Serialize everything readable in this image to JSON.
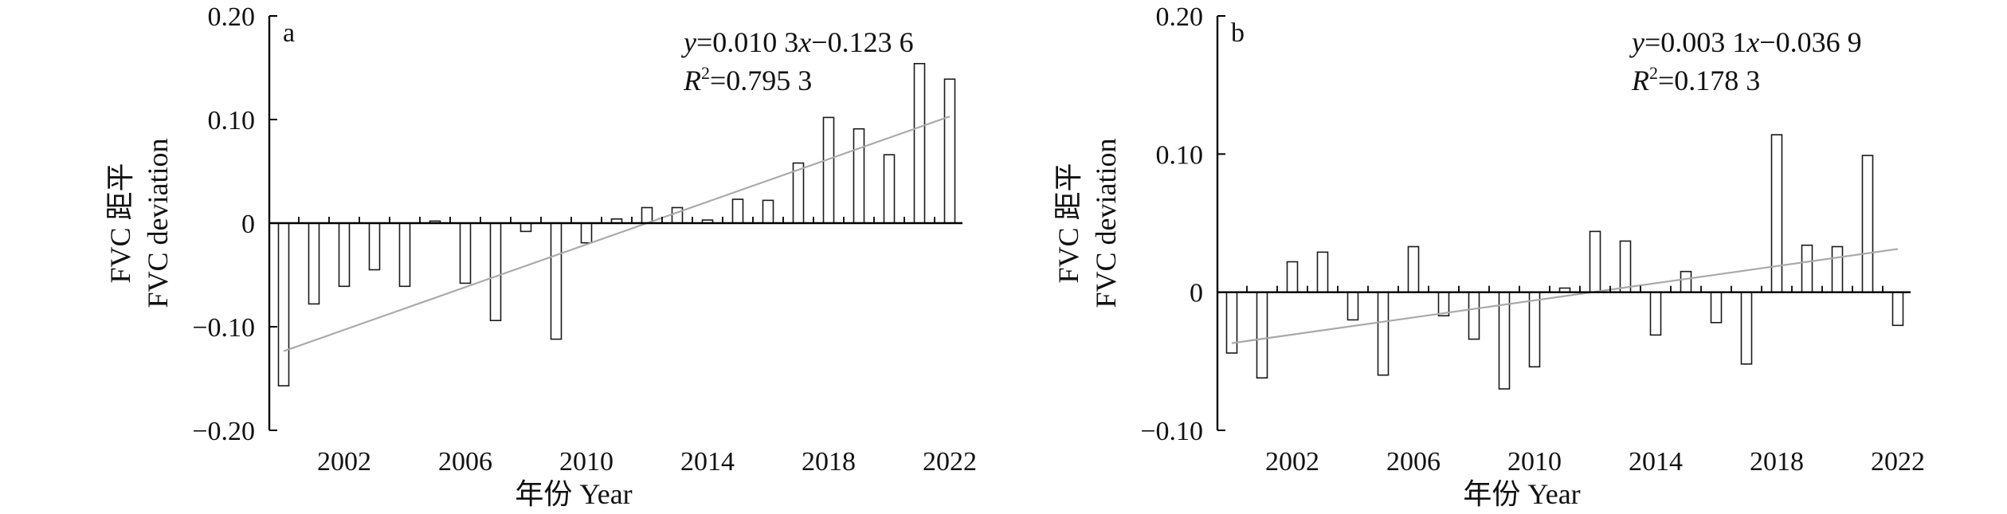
{
  "figure": {
    "colors": {
      "bar_fill": "#ffffff",
      "bar_stroke": "#1a1a1a",
      "axis": "#000000",
      "trend": "#a9a9a9"
    }
  },
  "chart_data": [
    {
      "type": "bar",
      "panel_label": "a",
      "ylabel_cn": "FVC 距平",
      "ylabel_en": "FVC deviation",
      "xlabel": "年份 Year",
      "equation": {
        "y_part": "y",
        "eq_part": "=0.010 3",
        "x_part": "x",
        "rest_part": "−0.123 6"
      },
      "r2": {
        "r_part": "R",
        "sup_part": "2",
        "val_part": "=0.795 3"
      },
      "ylim": [
        -0.2,
        0.2
      ],
      "yticks": [
        -0.2,
        -0.1,
        0,
        0.1,
        0.2
      ],
      "ytick_labels": [
        "−0.20",
        "−0.10",
        "0",
        "0.10",
        "0.20"
      ],
      "xticks": [
        2002,
        2006,
        2010,
        2014,
        2018,
        2022
      ],
      "xtick_labels": [
        "2002",
        "2006",
        "2010",
        "2014",
        "2018",
        "2022"
      ],
      "categories": [
        2000,
        2001,
        2002,
        2003,
        2004,
        2005,
        2006,
        2007,
        2008,
        2009,
        2010,
        2011,
        2012,
        2013,
        2014,
        2015,
        2016,
        2017,
        2018,
        2019,
        2020,
        2021,
        2022
      ],
      "values": [
        -0.157,
        -0.078,
        -0.061,
        -0.045,
        -0.061,
        0.002,
        -0.058,
        -0.094,
        -0.008,
        -0.112,
        -0.019,
        0.004,
        0.015,
        0.015,
        0.003,
        0.023,
        0.022,
        0.058,
        0.102,
        0.091,
        0.066,
        0.154,
        0.139
      ],
      "trend": {
        "slope": 0.0103,
        "intercept": -0.1236,
        "x0": 2000
      }
    },
    {
      "type": "bar",
      "panel_label": "b",
      "ylabel_cn": "FVC 距平",
      "ylabel_en": "FVC deviation",
      "xlabel": "年份 Year",
      "equation": {
        "y_part": "y",
        "eq_part": "=0.003 1",
        "x_part": "x",
        "rest_part": "−0.036 9"
      },
      "r2": {
        "r_part": "R",
        "sup_part": "2",
        "val_part": "=0.178 3"
      },
      "ylim": [
        -0.1,
        0.2
      ],
      "yticks": [
        -0.1,
        0,
        0.1,
        0.2
      ],
      "ytick_labels": [
        "−0.10",
        "0",
        "0.10",
        "0.20"
      ],
      "xticks": [
        2002,
        2006,
        2010,
        2014,
        2018,
        2022
      ],
      "xtick_labels": [
        "2002",
        "2006",
        "2010",
        "2014",
        "2018",
        "2022"
      ],
      "categories": [
        2000,
        2001,
        2002,
        2003,
        2004,
        2005,
        2006,
        2007,
        2008,
        2009,
        2010,
        2011,
        2012,
        2013,
        2014,
        2015,
        2016,
        2017,
        2018,
        2019,
        2020,
        2021,
        2022
      ],
      "values": [
        -0.044,
        -0.062,
        0.022,
        0.029,
        -0.02,
        -0.06,
        0.033,
        -0.017,
        -0.034,
        -0.07,
        -0.054,
        0.003,
        0.044,
        0.037,
        -0.031,
        0.015,
        -0.022,
        -0.052,
        0.114,
        0.034,
        0.033,
        0.099,
        -0.024
      ],
      "trend": {
        "slope": 0.0031,
        "intercept": -0.0369,
        "x0": 2000
      }
    }
  ]
}
